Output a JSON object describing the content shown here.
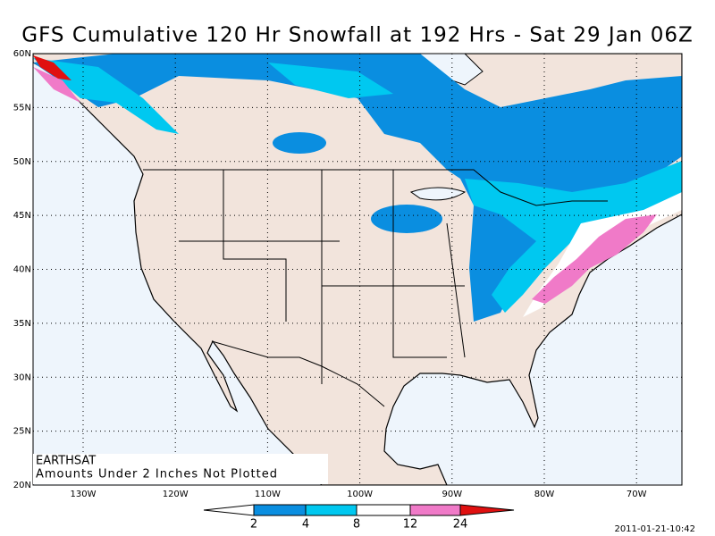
{
  "title": "GFS Cumulative 120 Hr Snowfall at 192 Hrs - Sat 29 Jan 06Z",
  "map": {
    "lat_labels": [
      "20N",
      "25N",
      "30N",
      "35N",
      "40N",
      "45N",
      "50N",
      "55N",
      "60N"
    ],
    "lon_labels": [
      "130W",
      "120W",
      "110W",
      "100W",
      "90W",
      "80W",
      "70W"
    ],
    "notes": [
      "EARTHSAT",
      "Amounts Under 2 Inches Not Plotted"
    ]
  },
  "colorbar": {
    "labels": [
      "2",
      "4",
      "8",
      "12",
      "24"
    ]
  },
  "timestamp": "2011-01-21-10:42"
}
